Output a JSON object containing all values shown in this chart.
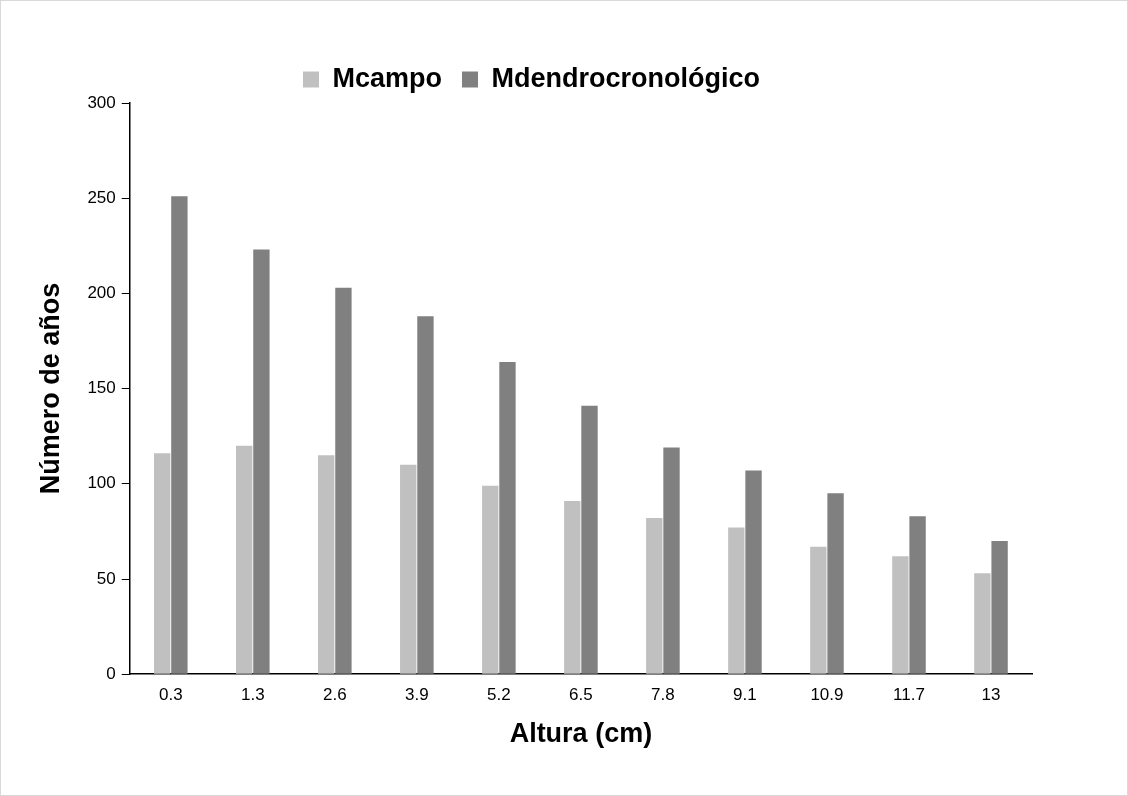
{
  "chart_data": {
    "type": "bar",
    "xlabel": "Altura (cm)",
    "ylabel": "Número de años",
    "categories": [
      "0.3",
      "1.3",
      "2.6",
      "3.9",
      "5.2",
      "6.5",
      "7.8",
      "9.1",
      "10.9",
      "11.7",
      "13"
    ],
    "series": [
      {
        "name": "Mcampo",
        "color": "#c0c0c0",
        "values": [
          116,
          120,
          115,
          110,
          99,
          91,
          82,
          77,
          67,
          62,
          53
        ]
      },
      {
        "name": "Mdendrocronológico",
        "color": "#808080",
        "values": [
          251,
          223,
          203,
          188,
          164,
          141,
          119,
          107,
          95,
          83,
          70
        ]
      }
    ],
    "ylim": [
      0,
      300
    ],
    "yticks": [
      0,
      50,
      100,
      150,
      200,
      250,
      300
    ],
    "grid": false,
    "legend": "top"
  }
}
